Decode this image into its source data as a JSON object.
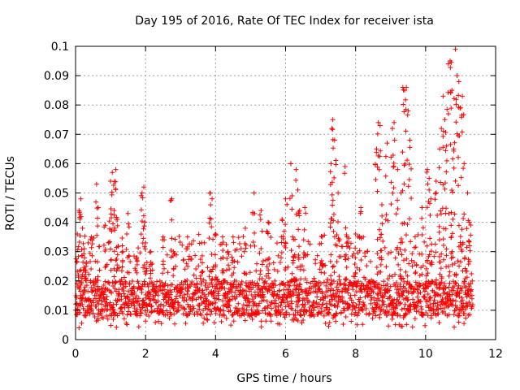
{
  "chart_data": {
    "type": "scatter",
    "title": "Day 195 of 2016, Rate Of TEC Index for receiver ista",
    "xlabel": "GPS time / hours",
    "ylabel": "ROTI / TECUs",
    "xlim": [
      0,
      12
    ],
    "ylim": [
      0,
      0.1
    ],
    "x_ticks": [
      "0",
      "2",
      "4",
      "6",
      "8",
      "10",
      "12"
    ],
    "y_ticks": [
      "0",
      "0.01",
      "0.02",
      "0.03",
      "0.04",
      "0.05",
      "0.06",
      "0.07",
      "0.08",
      "0.09",
      "0.1"
    ],
    "grid": true,
    "marker": "+",
    "color": "#ff0000",
    "x_range_of_data": [
      0,
      11.35
    ],
    "baseline_band": [
      0.008,
      0.02
    ],
    "series": [
      {
        "name": "ROTI",
        "x": [
          0.05,
          0.1,
          0.15,
          0.2,
          0.25,
          0.3,
          0.45,
          0.6,
          0.65,
          0.85,
          1.0,
          1.05,
          1.1,
          1.15,
          1.2,
          1.35,
          1.5,
          1.75,
          1.9,
          1.95,
          2.0,
          2.15,
          2.5,
          2.75,
          2.8,
          3.2,
          3.6,
          3.85,
          3.9,
          4.0,
          4.2,
          4.25,
          4.35,
          4.5,
          4.85,
          5.1,
          5.3,
          5.5,
          5.9,
          6.0,
          6.15,
          6.2,
          6.3,
          6.35,
          6.4,
          6.55,
          7.05,
          7.3,
          7.32,
          7.35,
          7.4,
          7.5,
          7.7,
          7.75,
          8.0,
          8.15,
          8.6,
          8.65,
          8.7,
          8.75,
          8.9,
          9.05,
          9.1,
          9.2,
          9.3,
          9.35,
          9.4,
          9.45,
          9.5,
          9.55,
          9.7,
          9.9,
          10.05,
          10.1,
          10.15,
          10.3,
          10.4,
          10.45,
          10.5,
          10.55,
          10.6,
          10.65,
          10.7,
          10.75,
          10.8,
          10.85,
          10.9,
          10.95,
          11.0,
          11.05,
          11.1,
          11.2,
          11.25
        ],
        "y": [
          0.036,
          0.044,
          0.048,
          0.038,
          0.031,
          0.025,
          0.035,
          0.053,
          0.045,
          0.039,
          0.054,
          0.057,
          0.044,
          0.058,
          0.041,
          0.03,
          0.043,
          0.028,
          0.05,
          0.052,
          0.033,
          0.03,
          0.035,
          0.048,
          0.03,
          0.035,
          0.033,
          0.05,
          0.048,
          0.036,
          0.035,
          0.02,
          0.03,
          0.035,
          0.038,
          0.05,
          0.044,
          0.04,
          0.041,
          0.048,
          0.06,
          0.035,
          0.058,
          0.051,
          0.044,
          0.045,
          0.035,
          0.06,
          0.072,
          0.075,
          0.068,
          0.05,
          0.059,
          0.035,
          0.036,
          0.045,
          0.065,
          0.074,
          0.073,
          0.046,
          0.067,
          0.072,
          0.074,
          0.058,
          0.05,
          0.086,
          0.085,
          0.086,
          0.078,
          0.068,
          0.035,
          0.045,
          0.058,
          0.055,
          0.048,
          0.054,
          0.065,
          0.072,
          0.083,
          0.075,
          0.066,
          0.094,
          0.095,
          0.085,
          0.065,
          0.099,
          0.09,
          0.088,
          0.079,
          0.083,
          0.06,
          0.05,
          0.04
        ]
      }
    ]
  }
}
